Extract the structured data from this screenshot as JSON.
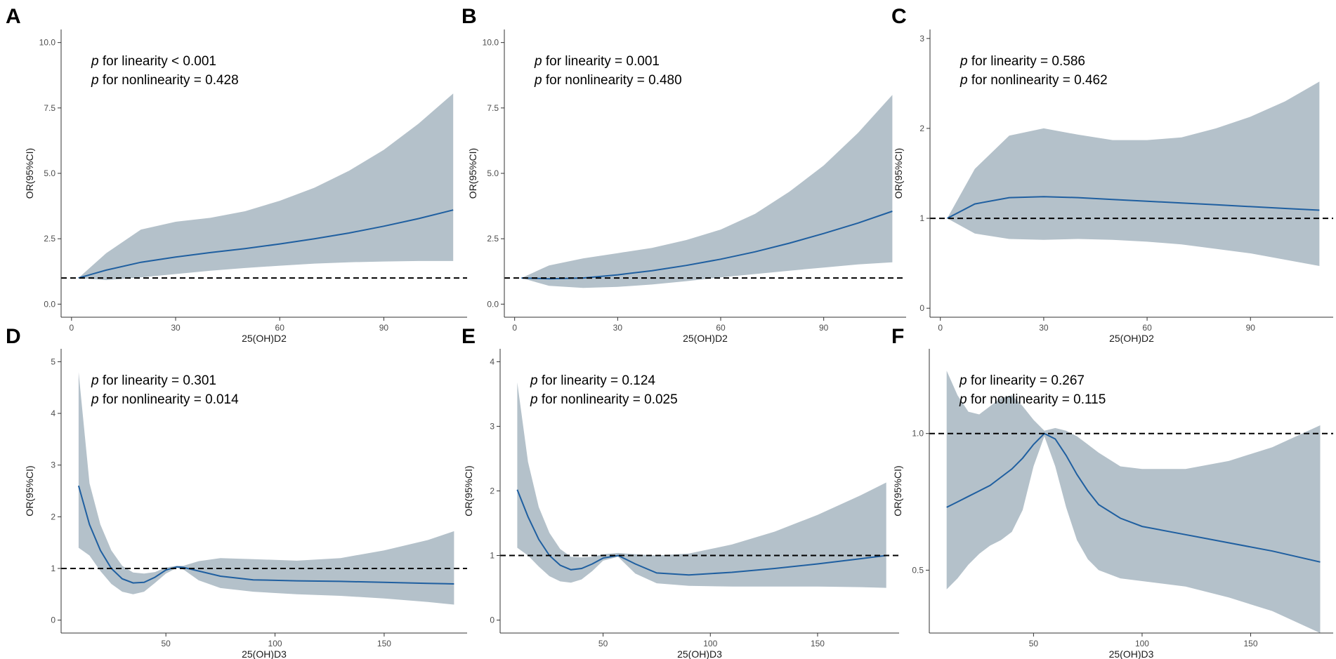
{
  "chart_data": [
    {
      "type": "line",
      "panel": "A",
      "title": "",
      "xlabel": "25(OH)D2",
      "ylabel": "OR(95%CI)",
      "xlim": [
        -3,
        114
      ],
      "ylim": [
        -0.5,
        10.5
      ],
      "xticks": [
        0,
        30,
        60,
        90
      ],
      "xtick_labels": [
        "0",
        "30",
        "60",
        "90"
      ],
      "yticks": [
        0,
        2.5,
        5,
        7.5,
        10
      ],
      "ytick_labels": [
        "0.0",
        "2.5",
        "5.0",
        "7.5",
        "10.0"
      ],
      "reference_line": 1,
      "annotations": [
        {
          "italic": "p",
          "text": " for linearity < 0.001"
        },
        {
          "italic": "p",
          "text": " for nonlinearity = 0.428"
        }
      ],
      "x": [
        2,
        10,
        20,
        30,
        40,
        50,
        60,
        70,
        80,
        90,
        100,
        110
      ],
      "y": [
        1.0,
        1.3,
        1.6,
        1.8,
        1.97,
        2.12,
        2.3,
        2.5,
        2.72,
        2.98,
        3.27,
        3.6
      ],
      "lower": [
        1.0,
        0.92,
        1.02,
        1.15,
        1.28,
        1.38,
        1.47,
        1.55,
        1.6,
        1.63,
        1.65,
        1.65
      ],
      "upper": [
        1.0,
        1.95,
        2.85,
        3.15,
        3.3,
        3.55,
        3.95,
        4.45,
        5.1,
        5.9,
        6.9,
        8.05
      ]
    },
    {
      "type": "line",
      "panel": "B",
      "title": "",
      "xlabel": "25(OH)D2",
      "ylabel": "OR(95%CI)",
      "xlim": [
        -3,
        114
      ],
      "ylim": [
        -0.5,
        10.5
      ],
      "xticks": [
        0,
        30,
        60,
        90
      ],
      "xtick_labels": [
        "0",
        "30",
        "60",
        "90"
      ],
      "yticks": [
        0,
        2.5,
        5,
        7.5,
        10
      ],
      "ytick_labels": [
        "0.0",
        "2.5",
        "5.0",
        "7.5",
        "10.0"
      ],
      "reference_line": 1,
      "annotations": [
        {
          "italic": "p",
          "text": " for linearity = 0.001"
        },
        {
          "italic": "p",
          "text": " for nonlinearity = 0.480"
        }
      ],
      "x": [
        2,
        10,
        20,
        30,
        40,
        50,
        60,
        70,
        80,
        90,
        100,
        110
      ],
      "y": [
        1.0,
        0.97,
        1.0,
        1.12,
        1.28,
        1.48,
        1.72,
        2.0,
        2.33,
        2.7,
        3.1,
        3.55
      ],
      "lower": [
        1.0,
        0.7,
        0.62,
        0.66,
        0.75,
        0.88,
        1.02,
        1.15,
        1.28,
        1.4,
        1.52,
        1.6
      ],
      "upper": [
        1.0,
        1.48,
        1.75,
        1.95,
        2.15,
        2.45,
        2.85,
        3.45,
        4.3,
        5.3,
        6.55,
        8.0
      ]
    },
    {
      "type": "line",
      "panel": "C",
      "title": "",
      "xlabel": "25(OH)D2",
      "ylabel": "OR(95%CI)",
      "xlim": [
        -3,
        114
      ],
      "ylim": [
        -0.1,
        3.1
      ],
      "xticks": [
        0,
        30,
        60,
        90
      ],
      "xtick_labels": [
        "0",
        "30",
        "60",
        "90"
      ],
      "yticks": [
        0,
        1,
        2,
        3
      ],
      "ytick_labels": [
        "0",
        "1",
        "2",
        "3"
      ],
      "reference_line": 1,
      "annotations": [
        {
          "italic": "p",
          "text": " for linearity = 0.586"
        },
        {
          "italic": "p",
          "text": " for nonlinearity = 0.462"
        }
      ],
      "x": [
        2,
        10,
        20,
        30,
        40,
        50,
        60,
        70,
        80,
        90,
        100,
        110
      ],
      "y": [
        1.0,
        1.16,
        1.23,
        1.24,
        1.23,
        1.21,
        1.19,
        1.17,
        1.15,
        1.13,
        1.11,
        1.09
      ],
      "lower": [
        1.0,
        0.83,
        0.77,
        0.76,
        0.77,
        0.76,
        0.74,
        0.71,
        0.66,
        0.61,
        0.54,
        0.47
      ],
      "upper": [
        1.0,
        1.55,
        1.92,
        2.0,
        1.93,
        1.87,
        1.87,
        1.9,
        2.0,
        2.13,
        2.3,
        2.52
      ]
    },
    {
      "type": "line",
      "panel": "D",
      "title": "",
      "xlabel": "25(OH)D3",
      "ylabel": "OR(95%CI)",
      "xlim": [
        2,
        188
      ],
      "ylim": [
        -0.25,
        5.25
      ],
      "xticks": [
        50,
        100,
        150
      ],
      "xtick_labels": [
        "50",
        "100",
        "150"
      ],
      "yticks": [
        0,
        1,
        2,
        3,
        4,
        5
      ],
      "ytick_labels": [
        "0",
        "1",
        "2",
        "3",
        "4",
        "5"
      ],
      "reference_line": 1,
      "annotations": [
        {
          "italic": "p",
          "text": " for linearity = 0.301"
        },
        {
          "italic": "p",
          "text": " for nonlinearity = 0.014"
        }
      ],
      "x": [
        10,
        15,
        20,
        25,
        30,
        35,
        40,
        45,
        50,
        55,
        58,
        65,
        75,
        90,
        110,
        130,
        150,
        170,
        182
      ],
      "y": [
        2.6,
        1.85,
        1.35,
        1.0,
        0.8,
        0.72,
        0.73,
        0.83,
        0.97,
        1.03,
        1.02,
        0.95,
        0.85,
        0.78,
        0.76,
        0.75,
        0.73,
        0.71,
        0.7
      ],
      "lower": [
        1.4,
        1.25,
        0.95,
        0.7,
        0.55,
        0.5,
        0.55,
        0.72,
        0.9,
        1.01,
        0.98,
        0.77,
        0.62,
        0.55,
        0.5,
        0.47,
        0.42,
        0.35,
        0.3
      ],
      "upper": [
        4.8,
        2.65,
        1.85,
        1.35,
        1.05,
        0.92,
        0.9,
        0.93,
        1.02,
        1.05,
        1.05,
        1.14,
        1.2,
        1.18,
        1.15,
        1.2,
        1.35,
        1.55,
        1.72
      ]
    },
    {
      "type": "line",
      "panel": "E",
      "title": "",
      "xlabel": "25(OH)D3",
      "ylabel": "OR(95%CI)",
      "xlim": [
        2,
        188
      ],
      "ylim": [
        -0.2,
        4.2
      ],
      "xticks": [
        50,
        100,
        150
      ],
      "xtick_labels": [
        "50",
        "100",
        "150"
      ],
      "yticks": [
        0,
        1,
        2,
        3,
        4
      ],
      "ytick_labels": [
        "0",
        "1",
        "2",
        "3",
        "4"
      ],
      "reference_line": 1,
      "annotations": [
        {
          "italic": "p",
          "text": " for linearity = 0.124"
        },
        {
          "italic": "p",
          "text": " for nonlinearity = 0.025"
        }
      ],
      "x": [
        10,
        15,
        20,
        25,
        30,
        35,
        40,
        45,
        50,
        57,
        65,
        75,
        90,
        110,
        130,
        150,
        170,
        182
      ],
      "y": [
        2.02,
        1.6,
        1.25,
        1.0,
        0.85,
        0.78,
        0.8,
        0.87,
        0.96,
        1.0,
        0.87,
        0.73,
        0.7,
        0.74,
        0.8,
        0.87,
        0.95,
        1.0
      ],
      "lower": [
        1.12,
        1.0,
        0.83,
        0.68,
        0.6,
        0.58,
        0.63,
        0.76,
        0.92,
        0.98,
        0.72,
        0.57,
        0.53,
        0.52,
        0.52,
        0.52,
        0.51,
        0.5
      ],
      "upper": [
        3.68,
        2.45,
        1.75,
        1.35,
        1.1,
        0.98,
        0.97,
        0.98,
        1.02,
        1.04,
        1.02,
        1.0,
        1.03,
        1.17,
        1.37,
        1.63,
        1.93,
        2.13
      ]
    },
    {
      "type": "line",
      "panel": "F",
      "title": "",
      "xlabel": "25(OH)D3",
      "ylabel": "OR(95%CI)",
      "xlim": [
        2,
        188
      ],
      "ylim": [
        0.27,
        1.31
      ],
      "xticks": [
        50,
        100,
        150
      ],
      "xtick_labels": [
        "50",
        "100",
        "150"
      ],
      "yticks": [
        0.5,
        1.0
      ],
      "ytick_labels": [
        "0.5",
        "1.0"
      ],
      "reference_line": 1,
      "annotations": [
        {
          "italic": "p",
          "text": " for linearity = 0.267"
        },
        {
          "italic": "p",
          "text": " for nonlinearity = 0.115"
        }
      ],
      "x": [
        10,
        15,
        20,
        25,
        30,
        35,
        40,
        45,
        50,
        55,
        60,
        65,
        70,
        75,
        80,
        90,
        100,
        120,
        140,
        160,
        182
      ],
      "y": [
        0.73,
        0.75,
        0.77,
        0.79,
        0.81,
        0.84,
        0.87,
        0.91,
        0.96,
        1.0,
        0.98,
        0.92,
        0.85,
        0.79,
        0.74,
        0.69,
        0.66,
        0.63,
        0.6,
        0.57,
        0.53
      ],
      "lower": [
        0.43,
        0.47,
        0.52,
        0.56,
        0.59,
        0.61,
        0.64,
        0.72,
        0.88,
        0.99,
        0.88,
        0.73,
        0.61,
        0.54,
        0.5,
        0.47,
        0.46,
        0.44,
        0.4,
        0.35,
        0.27
      ],
      "upper": [
        1.23,
        1.14,
        1.08,
        1.07,
        1.1,
        1.13,
        1.14,
        1.1,
        1.05,
        1.01,
        1.02,
        1.01,
        0.99,
        0.96,
        0.93,
        0.88,
        0.87,
        0.87,
        0.9,
        0.95,
        1.03
      ]
    }
  ]
}
